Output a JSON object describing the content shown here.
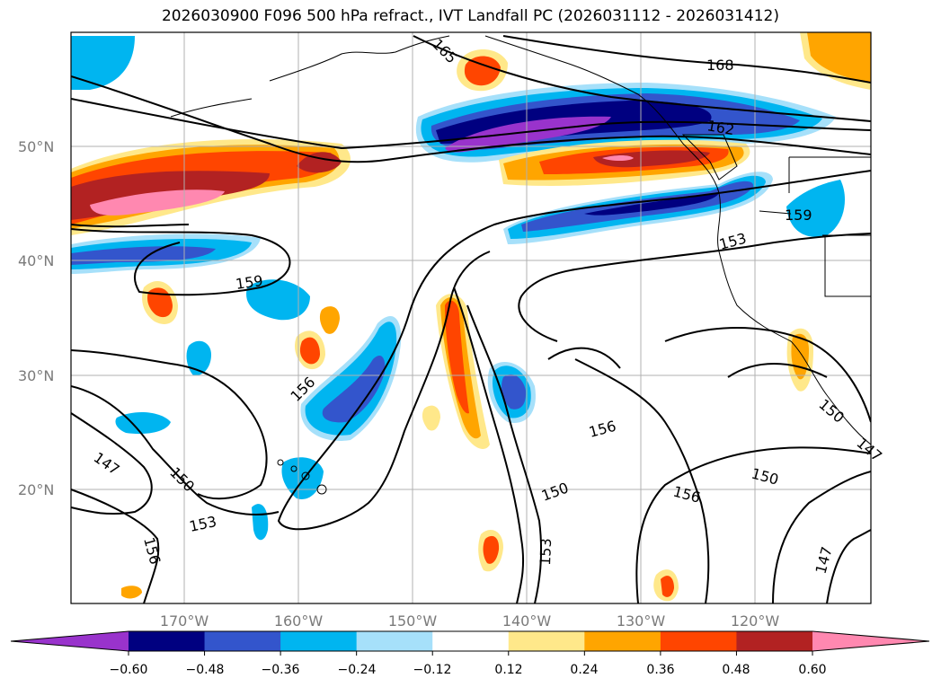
{
  "title": "2026030900 F096 500 hPa refract., IVT Landfall PC (2026031112 - 2026031412)",
  "lat_labels": [
    "50°N",
    "40°N",
    "30°N",
    "20°N"
  ],
  "lon_labels": [
    "170°W",
    "160°W",
    "150°W",
    "140°W",
    "130°W",
    "120°W"
  ],
  "contour_labels": [
    "165",
    "168",
    "162",
    "159",
    "159",
    "153",
    "156",
    "156",
    "150",
    "156",
    "150",
    "153",
    "147",
    "150",
    "153",
    "156",
    "150",
    "147",
    "147"
  ],
  "colorbar": {
    "ticks": [
      "−0.60",
      "−0.48",
      "−0.36",
      "−0.24",
      "−0.12",
      "0.12",
      "0.24",
      "0.36",
      "0.48",
      "0.60"
    ],
    "colors": [
      "#9933cc",
      "#000080",
      "#3355cc",
      "#00b5f0",
      "#a6e0fa",
      "#ffffff",
      "#ffe88a",
      "#ffa500",
      "#ff4500",
      "#b22222",
      "#ff88b0"
    ]
  }
}
